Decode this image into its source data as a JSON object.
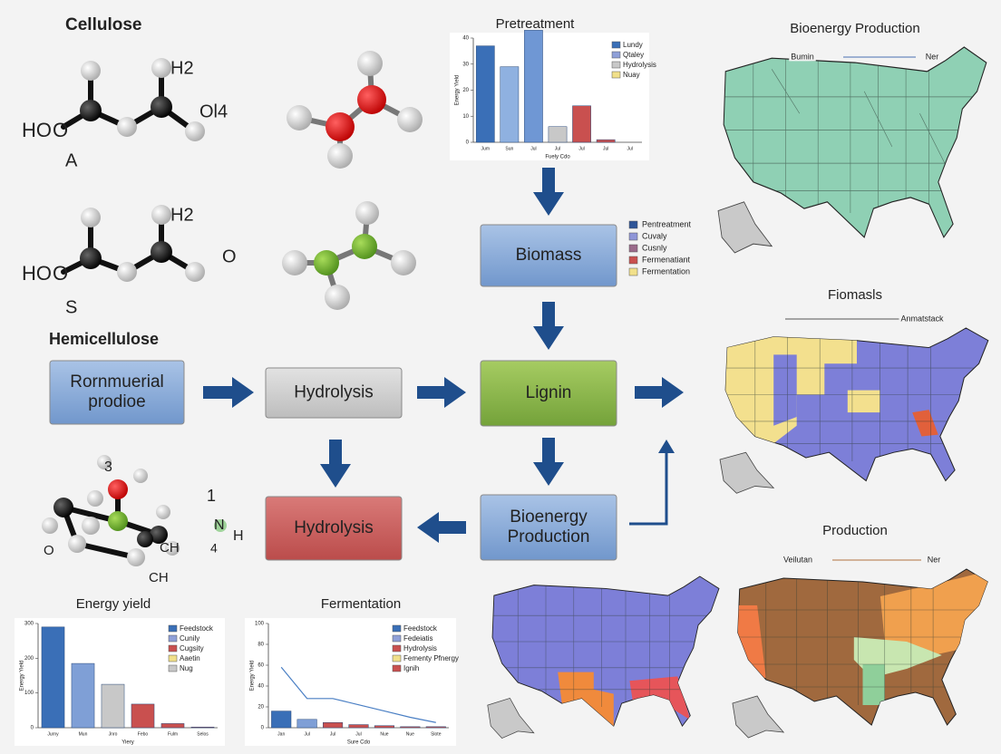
{
  "labels": {
    "cellulose": "Cellulose",
    "hemicellulose": "Hemicellulose"
  },
  "molecule_labels": [
    "H2",
    "HO",
    "O",
    "A",
    "Ol4",
    "H2",
    "HO",
    "O",
    "S",
    "O",
    "3",
    "1",
    "N",
    "H",
    "4",
    "CH",
    "CH",
    "O"
  ],
  "flow": {
    "boxes": [
      {
        "lines": [
          "Rornmuerial",
          "prodioe"
        ],
        "color": "blue"
      },
      {
        "lines": [
          "Hydrolysis"
        ],
        "color": "gray"
      },
      {
        "lines": [
          "Biomass"
        ],
        "color": "blue"
      },
      {
        "lines": [
          "Lignin"
        ],
        "color": "green"
      },
      {
        "lines": [
          "Bioenergy",
          "Production"
        ],
        "color": "blue"
      },
      {
        "lines": [
          "Hydrolysis"
        ],
        "color": "red"
      }
    ]
  },
  "legend_mid": [
    {
      "label": "Pentreatment",
      "color": "#2f5597"
    },
    {
      "label": "Cuvaly",
      "color": "#8e95d8"
    },
    {
      "label": "Cusnly",
      "color": "#9a6a8a"
    },
    {
      "label": "Fermenatiant",
      "color": "#c9504f"
    },
    {
      "label": "Fermentation",
      "color": "#f1e08a"
    }
  ],
  "maps": [
    {
      "title": "Bioenergy Production",
      "legend": [
        "Bumin",
        "Ner"
      ]
    },
    {
      "title": "Fiomasls",
      "legend": [
        "Anmatstack"
      ]
    },
    {
      "title": "Production",
      "legend": [
        "Veilutan",
        "Ner"
      ]
    }
  ],
  "chart_data": [
    {
      "type": "bar",
      "title": "Pretreatment",
      "x_label": "Fuely Cdo",
      "y_label": "Energy Yield",
      "categories": [
        "Jum",
        "Sun",
        "Jul",
        "Jul",
        "Jul",
        "Jul",
        "Jul"
      ],
      "series": [
        {
          "kind": "bar",
          "colors": [
            "#3a6fb7",
            "#8fb1e0",
            "#6f97d4",
            "#c8c8c8",
            "#c9504f",
            "#c9504f",
            "#c9504f"
          ],
          "values": [
            37,
            29,
            43,
            6,
            14,
            1,
            0
          ]
        }
      ],
      "ylim": [
        0,
        40
      ],
      "yticks": [
        0,
        10,
        20,
        30,
        40
      ],
      "legend": [
        {
          "label": "Lundy",
          "color": "#3a6fb7"
        },
        {
          "label": "Qtaley",
          "color": "#8fa0d8"
        },
        {
          "label": "Hydrolysis",
          "color": "#c8c8c8"
        },
        {
          "label": "Nuay",
          "color": "#f1e08a"
        }
      ]
    },
    {
      "type": "bar",
      "title": "Energy yield",
      "x_label": "Yiery",
      "y_label": "Energy Yield",
      "categories": [
        "Jurny",
        "Mun",
        "Jnro",
        "Febo",
        "Fulm",
        "Selos"
      ],
      "series": [
        {
          "kind": "bar",
          "colors": [
            "#3a6fb7",
            "#7f9fd6",
            "#c8c8c8",
            "#c9504f",
            "#c9504f",
            "#c9504f"
          ],
          "values": [
            290,
            185,
            125,
            68,
            12,
            2
          ]
        }
      ],
      "ylim": [
        0,
        300
      ],
      "yticks": [
        0,
        100,
        200,
        300
      ],
      "legend": [
        {
          "label": "Feedstock",
          "color": "#3a6fb7"
        },
        {
          "label": "Cunily",
          "color": "#8fa0d8"
        },
        {
          "label": "Cugsity",
          "color": "#c9504f"
        },
        {
          "label": "Aaetin",
          "color": "#f1e08a"
        },
        {
          "label": "Nug",
          "color": "#c8c8c8"
        }
      ]
    },
    {
      "type": "combo",
      "title": "Fermentation",
      "x_label": "Sure Cdo",
      "y_label": "Energy Yield",
      "categories": [
        "Jan",
        "Jul",
        "Jul",
        "Jul",
        "Nue",
        "Nue",
        "Slote"
      ],
      "series": [
        {
          "kind": "bar",
          "colors": [
            "#3a6fb7",
            "#7f9fd6",
            "#c9504f",
            "#c9504f",
            "#c9504f",
            "#c9504f",
            "#c9504f"
          ],
          "values": [
            16,
            8,
            5,
            3,
            2,
            1,
            1
          ]
        },
        {
          "kind": "line",
          "color": "#4a7fc4",
          "values": [
            58,
            28,
            28,
            22,
            16,
            10,
            5
          ]
        }
      ],
      "ylim": [
        0,
        100
      ],
      "yticks": [
        0,
        20,
        40,
        60,
        80,
        100
      ],
      "legend": [
        {
          "label": "Feedstock",
          "color": "#3a6fb7"
        },
        {
          "label": "Fedeiatis",
          "color": "#8fa0d8"
        },
        {
          "label": "Hydrolysis",
          "color": "#c9504f"
        },
        {
          "label": "Fementy Pfnergy",
          "color": "#f1e08a"
        },
        {
          "label": "Ignih",
          "color": "#c9504f"
        }
      ]
    }
  ]
}
